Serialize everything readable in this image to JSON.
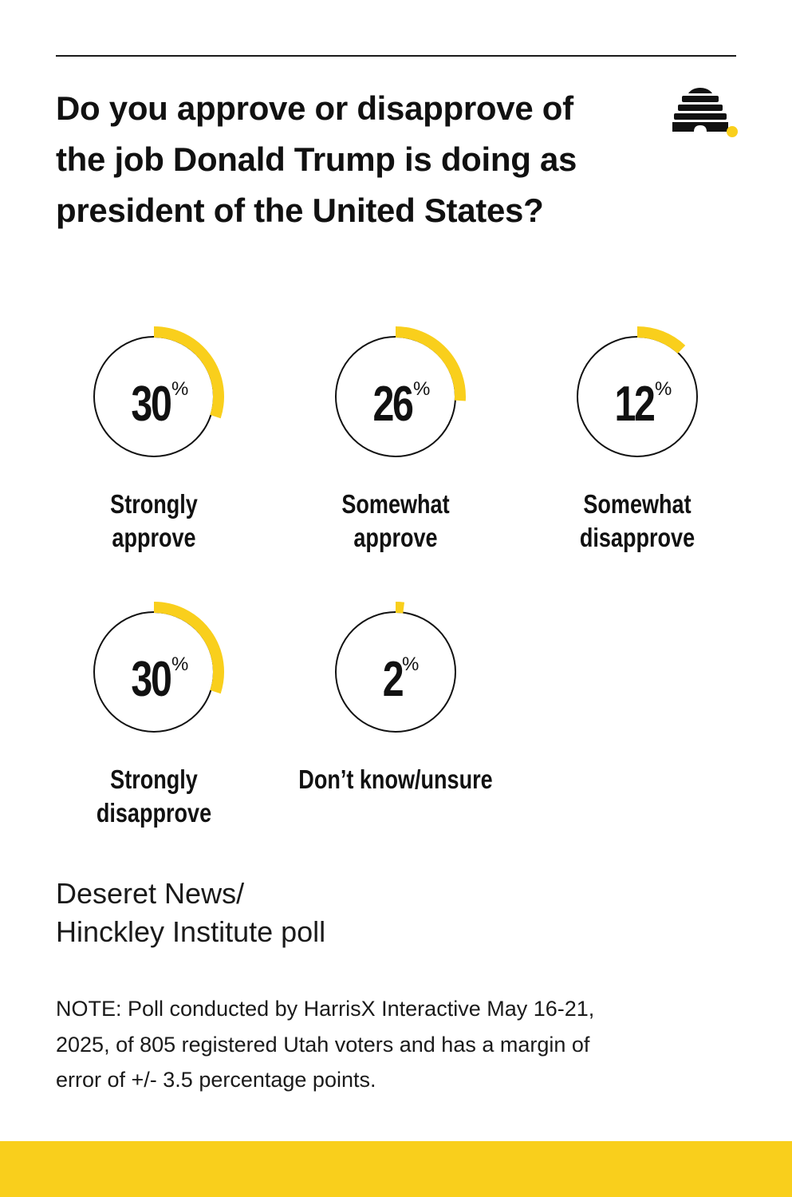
{
  "question": "Do you approve or disapprove of the job Donald Trump is doing as president of the United States?",
  "percent_symbol": "%",
  "colors": {
    "accent": "#f9cf1c",
    "ink": "#111111"
  },
  "logo_icon": "beehive-icon",
  "chart_data": {
    "type": "donut",
    "unit": "%",
    "categories": [
      "Strongly approve",
      "Somewhat approve",
      "Somewhat disapprove",
      "Strongly disapprove",
      "Don’t know/unsure"
    ],
    "values": [
      30,
      26,
      12,
      30,
      2
    ],
    "items": [
      {
        "value": 30,
        "display": "30",
        "label_lines": [
          "Strongly",
          "approve"
        ]
      },
      {
        "value": 26,
        "display": "26",
        "label_lines": [
          "Somewhat",
          "approve"
        ]
      },
      {
        "value": 12,
        "display": "12",
        "label_lines": [
          "Somewhat",
          "disapprove"
        ]
      },
      {
        "value": 30,
        "display": "30",
        "label_lines": [
          "Strongly",
          "disapprove"
        ]
      },
      {
        "value": 2,
        "display": "2",
        "label_lines": [
          "Don’t know/unsure"
        ]
      }
    ]
  },
  "source": {
    "line1": "Deseret News/",
    "line2": "Hinckley Institute poll"
  },
  "note": {
    "line1": "NOTE: Poll conducted by HarrisX Interactive May 16-21,",
    "line2": "2025, of 805 registered Utah voters and has a margin of",
    "line3": "error of +/- 3.5 percentage points."
  }
}
